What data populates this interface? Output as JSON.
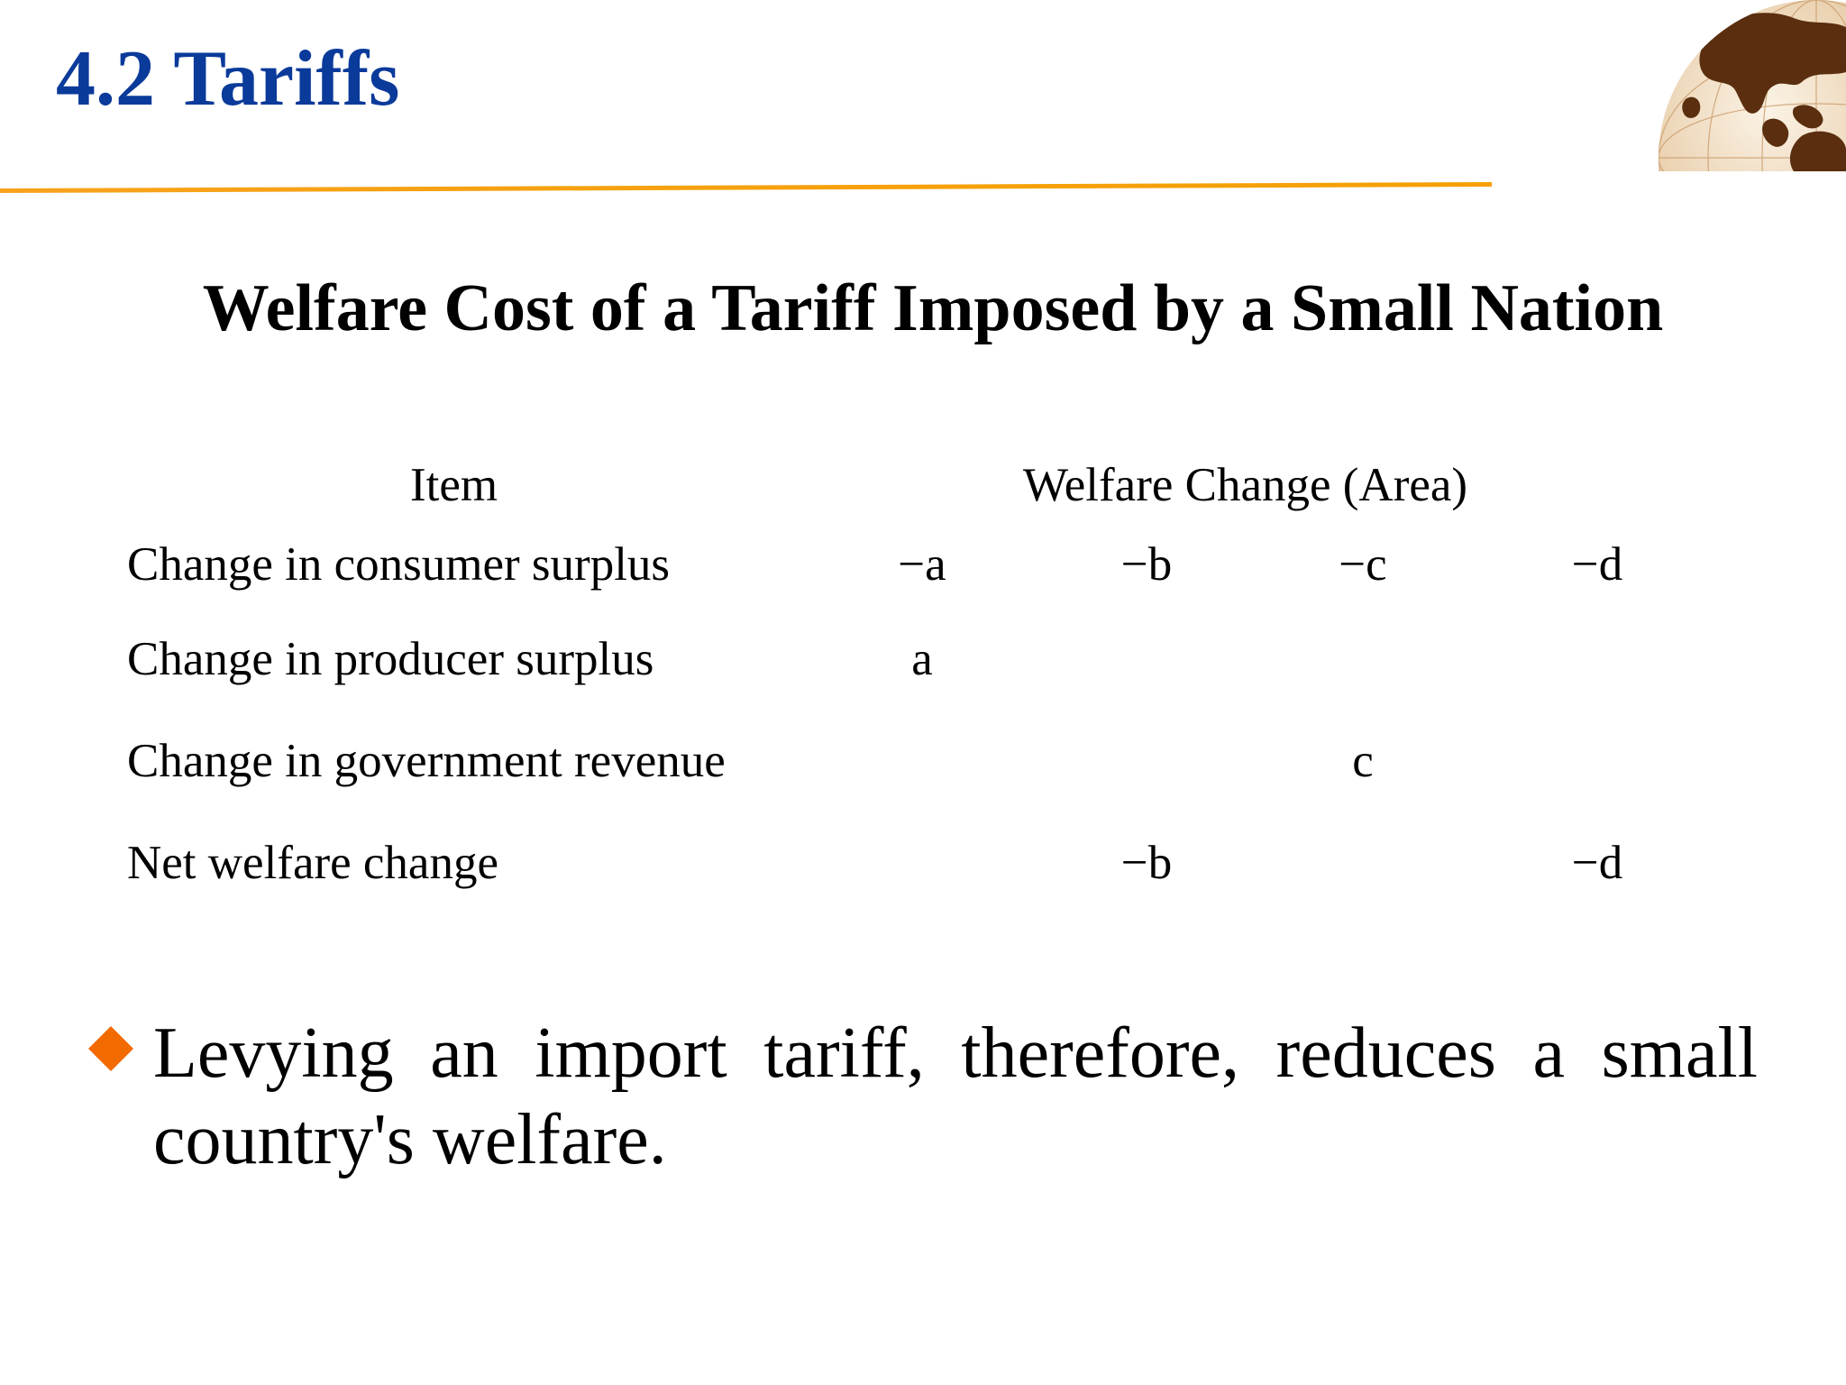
{
  "header": {
    "title": "4.2 Tariffs",
    "accent_color": "#f5a000",
    "title_color": "#0a3a9a",
    "logo_icon": "globe-icon"
  },
  "table": {
    "title": "Welfare Cost of a Tariff Imposed by a Small Nation",
    "col_item": "Item",
    "col_welfare": "Welfare Change (Area)",
    "rows": [
      {
        "label": "Change in consumer surplus",
        "values": [
          "−a",
          "−b",
          "−c",
          "−d"
        ]
      },
      {
        "label": "Change in producer surplus",
        "values": [
          "a",
          "",
          "",
          ""
        ]
      },
      {
        "label": "Change in government revenue",
        "values": [
          "",
          "",
          "c",
          ""
        ]
      },
      {
        "label": "Net welfare change",
        "values": [
          "",
          "−b",
          "",
          "−d"
        ]
      }
    ]
  },
  "bullet": {
    "text": "Levying an import tariff, therefore, reduces a small country's welfare.",
    "color": "#f26a00",
    "icon": "diamond-bullet-icon"
  }
}
